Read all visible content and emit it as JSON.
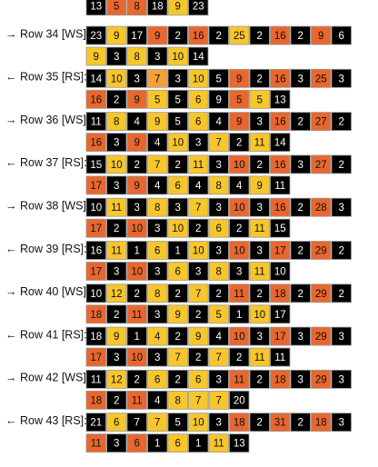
{
  "palette": {
    "B": "#000000",
    "R": "#e8672e",
    "O": "#f4a13a",
    "Y": "#f6c62c"
  },
  "partial_row": {
    "values": [
      13,
      5,
      8,
      18,
      9,
      23
    ],
    "colors": "BRRBYB"
  },
  "rows": [
    {
      "label": "→ Row 34 [WS]:",
      "lines": [
        {
          "values": [
            23,
            9,
            17,
            9,
            2,
            16,
            2,
            25,
            2,
            16,
            2,
            9,
            6
          ],
          "colors": "BYBRBRBYBRBRB"
        },
        {
          "values": [
            9,
            3,
            8,
            3,
            10,
            14
          ],
          "colors": "YBYBYB"
        }
      ]
    },
    {
      "label": "← Row 35 [RS]:",
      "lines": [
        {
          "values": [
            14,
            10,
            3,
            7,
            3,
            10,
            5,
            9,
            2,
            16,
            3,
            25,
            3
          ],
          "colors": "BYBOBYBRBRBRB"
        },
        {
          "values": [
            16,
            2,
            9,
            5,
            5,
            6,
            9,
            5,
            5,
            13
          ],
          "colors": "RBRYBYBRYB"
        }
      ]
    },
    {
      "label": "→ Row 36 [WS]:",
      "lines": [
        {
          "values": [
            11,
            8,
            4,
            9,
            5,
            6,
            4,
            9,
            3,
            16,
            2,
            27,
            2
          ],
          "colors": "BYBYBYBRBRBRB"
        },
        {
          "values": [
            16,
            3,
            9,
            4,
            10,
            3,
            7,
            2,
            11,
            14
          ],
          "colors": "RBRBYBYBYB"
        }
      ]
    },
    {
      "label": "← Row 37 [RS]:",
      "lines": [
        {
          "values": [
            15,
            10,
            2,
            7,
            2,
            11,
            3,
            10,
            2,
            16,
            3,
            27,
            2
          ],
          "colors": "BYBYBYBRBRBRB"
        },
        {
          "values": [
            17,
            3,
            9,
            4,
            6,
            4,
            8,
            4,
            9,
            11
          ],
          "colors": "RBRBYBYBYB"
        }
      ]
    },
    {
      "label": "→ Row 38 [WS]:",
      "lines": [
        {
          "values": [
            10,
            11,
            3,
            8,
            3,
            7,
            3,
            10,
            3,
            16,
            2,
            28,
            3
          ],
          "colors": "BYBYBYBRBRBRB"
        },
        {
          "values": [
            17,
            2,
            10,
            3,
            10,
            2,
            6,
            2,
            11,
            15
          ],
          "colors": "RBRBYBYBYB"
        }
      ]
    },
    {
      "label": "← Row 39 [RS]:",
      "lines": [
        {
          "values": [
            16,
            11,
            1,
            6,
            1,
            10,
            3,
            10,
            3,
            17,
            2,
            29,
            2
          ],
          "colors": "BYBYBYBRBRBRB"
        },
        {
          "values": [
            17,
            3,
            10,
            3,
            6,
            3,
            8,
            3,
            11,
            10
          ],
          "colors": "RBRBYBYBYB"
        }
      ]
    },
    {
      "label": "→ Row 40 [WS]:",
      "lines": [
        {
          "values": [
            10,
            12,
            2,
            8,
            2,
            7,
            2,
            11,
            2,
            18,
            2,
            29,
            2
          ],
          "colors": "BYBYBYBRBRBRB"
        },
        {
          "values": [
            18,
            2,
            11,
            3,
            9,
            2,
            5,
            1,
            10,
            17
          ],
          "colors": "RBRBYBYBYB"
        }
      ]
    },
    {
      "label": "← Row 41 [RS]:",
      "lines": [
        {
          "values": [
            18,
            9,
            1,
            4,
            2,
            9,
            4,
            10,
            3,
            17,
            3,
            29,
            3
          ],
          "colors": "BYBYBYBRBRBRB"
        },
        {
          "values": [
            17,
            3,
            10,
            3,
            7,
            2,
            7,
            2,
            11,
            11
          ],
          "colors": "RBRBYBYBYB"
        }
      ]
    },
    {
      "label": "→ Row 42 [WS]:",
      "lines": [
        {
          "values": [
            11,
            12,
            2,
            6,
            2,
            6,
            3,
            11,
            2,
            18,
            3,
            29,
            3
          ],
          "colors": "BYBYBYBRBRBRB"
        },
        {
          "values": [
            18,
            2,
            11,
            4,
            8,
            7,
            7,
            20
          ],
          "colors": "RBRBYYYB"
        }
      ]
    },
    {
      "label": "← Row 43 [RS]:",
      "lines": [
        {
          "values": [
            21,
            6,
            7,
            7,
            5,
            10,
            3,
            18,
            2,
            31,
            2,
            18,
            3
          ],
          "colors": "BYBYBYBRBRBRB"
        },
        {
          "values": [
            11,
            3,
            6,
            1,
            6,
            1,
            11,
            13
          ],
          "colors": "RBRBYBYB"
        }
      ]
    }
  ]
}
